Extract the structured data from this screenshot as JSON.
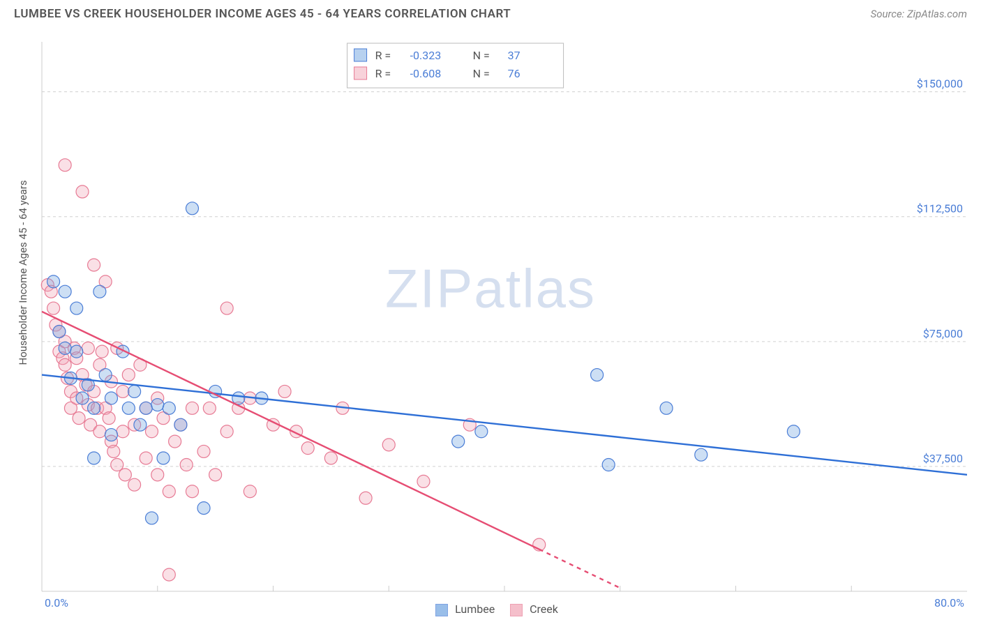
{
  "header": {
    "title": "LUMBEE VS CREEK HOUSEHOLDER INCOME AGES 45 - 64 YEARS CORRELATION CHART",
    "source": "Source: ZipAtlas.com"
  },
  "watermark": {
    "bold": "ZIP",
    "thin": "atlas"
  },
  "chart": {
    "type": "scatter",
    "background_color": "#ffffff",
    "grid_color": "#d0d0d0",
    "grid_dash": "4,4",
    "border_color": "#cccccc",
    "xlim": [
      0,
      80
    ],
    "ylim": [
      0,
      165000
    ],
    "xlabel_min": "0.0%",
    "xlabel_max": "80.0%",
    "ylabel": "Householder Income Ages 45 - 64 years",
    "ylabel_color": "#555555",
    "ylabel_fontsize": 15,
    "yticks": [
      {
        "v": 37500,
        "label": "$37,500"
      },
      {
        "v": 75000,
        "label": "$75,000"
      },
      {
        "v": 112500,
        "label": "$112,500"
      },
      {
        "v": 150000,
        "label": "$150,000"
      }
    ],
    "ytick_color": "#4a7dd6",
    "ytick_fontsize": 16,
    "xtick_color": "#4a7dd6",
    "marker_radius": 9,
    "marker_stroke_width": 1.2,
    "marker_fill_opacity": 0.35,
    "series": [
      {
        "name": "Lumbee",
        "color": "#6fa3e0",
        "stroke": "#4a7dd6",
        "trend": {
          "x1": 0,
          "y1": 65000,
          "x2": 80,
          "y2": 35000,
          "color": "#2e6fd6",
          "width": 2.4
        },
        "stats": {
          "R": "-0.323",
          "N": "37"
        },
        "points": [
          [
            1.0,
            93000
          ],
          [
            1.5,
            78000
          ],
          [
            2.0,
            73000
          ],
          [
            2.0,
            90000
          ],
          [
            2.5,
            64000
          ],
          [
            3.0,
            72000
          ],
          [
            3.0,
            85000
          ],
          [
            3.5,
            58000
          ],
          [
            4.0,
            62000
          ],
          [
            4.5,
            55000
          ],
          [
            4.5,
            40000
          ],
          [
            5.0,
            90000
          ],
          [
            5.5,
            65000
          ],
          [
            6.0,
            58000
          ],
          [
            6.0,
            47000
          ],
          [
            7.0,
            72000
          ],
          [
            7.5,
            55000
          ],
          [
            8.0,
            60000
          ],
          [
            8.5,
            50000
          ],
          [
            9.0,
            55000
          ],
          [
            9.5,
            22000
          ],
          [
            10.0,
            56000
          ],
          [
            10.5,
            40000
          ],
          [
            11.0,
            55000
          ],
          [
            12.0,
            50000
          ],
          [
            13.0,
            115000
          ],
          [
            14.0,
            25000
          ],
          [
            15.0,
            60000
          ],
          [
            17.0,
            58000
          ],
          [
            19.0,
            58000
          ],
          [
            36.0,
            45000
          ],
          [
            38.0,
            48000
          ],
          [
            48.0,
            65000
          ],
          [
            49.0,
            38000
          ],
          [
            54.0,
            55000
          ],
          [
            57.0,
            41000
          ],
          [
            65.0,
            48000
          ]
        ]
      },
      {
        "name": "Creek",
        "color": "#f2a5b6",
        "stroke": "#e77a94",
        "trend": {
          "x1": 0,
          "y1": 84000,
          "x2": 50,
          "y2": 1000,
          "color": "#e64d73",
          "width": 2.4,
          "dash_from_x": 43
        },
        "stats": {
          "R": "-0.608",
          "N": "76"
        },
        "points": [
          [
            0.5,
            92000
          ],
          [
            0.8,
            90000
          ],
          [
            1.0,
            85000
          ],
          [
            1.2,
            80000
          ],
          [
            1.5,
            78000
          ],
          [
            1.5,
            72000
          ],
          [
            1.8,
            70000
          ],
          [
            2.0,
            128000
          ],
          [
            2.0,
            75000
          ],
          [
            2.0,
            68000
          ],
          [
            2.2,
            64000
          ],
          [
            2.5,
            60000
          ],
          [
            2.5,
            55000
          ],
          [
            2.8,
            73000
          ],
          [
            3.0,
            70000
          ],
          [
            3.0,
            58000
          ],
          [
            3.2,
            52000
          ],
          [
            3.5,
            120000
          ],
          [
            3.5,
            65000
          ],
          [
            3.8,
            62000
          ],
          [
            4.0,
            73000
          ],
          [
            4.0,
            56000
          ],
          [
            4.2,
            50000
          ],
          [
            4.5,
            98000
          ],
          [
            4.5,
            60000
          ],
          [
            4.8,
            55000
          ],
          [
            5.0,
            68000
          ],
          [
            5.0,
            48000
          ],
          [
            5.2,
            72000
          ],
          [
            5.5,
            93000
          ],
          [
            5.5,
            55000
          ],
          [
            5.8,
            52000
          ],
          [
            6.0,
            63000
          ],
          [
            6.0,
            45000
          ],
          [
            6.2,
            42000
          ],
          [
            6.5,
            73000
          ],
          [
            6.5,
            38000
          ],
          [
            7.0,
            60000
          ],
          [
            7.0,
            48000
          ],
          [
            7.2,
            35000
          ],
          [
            7.5,
            65000
          ],
          [
            8.0,
            50000
          ],
          [
            8.0,
            32000
          ],
          [
            8.5,
            68000
          ],
          [
            9.0,
            55000
          ],
          [
            9.0,
            40000
          ],
          [
            9.5,
            48000
          ],
          [
            10.0,
            58000
          ],
          [
            10.0,
            35000
          ],
          [
            10.5,
            52000
          ],
          [
            11.0,
            30000
          ],
          [
            11.0,
            5000
          ],
          [
            11.5,
            45000
          ],
          [
            12.0,
            50000
          ],
          [
            12.5,
            38000
          ],
          [
            13.0,
            55000
          ],
          [
            13.0,
            30000
          ],
          [
            14.0,
            42000
          ],
          [
            14.5,
            55000
          ],
          [
            15.0,
            35000
          ],
          [
            16.0,
            85000
          ],
          [
            16.0,
            48000
          ],
          [
            17.0,
            55000
          ],
          [
            18.0,
            58000
          ],
          [
            18.0,
            30000
          ],
          [
            20.0,
            50000
          ],
          [
            21.0,
            60000
          ],
          [
            22.0,
            48000
          ],
          [
            23.0,
            43000
          ],
          [
            25.0,
            40000
          ],
          [
            26.0,
            55000
          ],
          [
            28.0,
            28000
          ],
          [
            30.0,
            44000
          ],
          [
            33.0,
            33000
          ],
          [
            37.0,
            50000
          ],
          [
            43.0,
            14000
          ]
        ]
      }
    ],
    "stats_box": {
      "border_color": "#bbbbbb",
      "bg": "#ffffff",
      "label_color": "#555555",
      "value_color": "#4a7dd6",
      "fontsize": 16
    },
    "bottom_legend_fontsize": 16
  }
}
